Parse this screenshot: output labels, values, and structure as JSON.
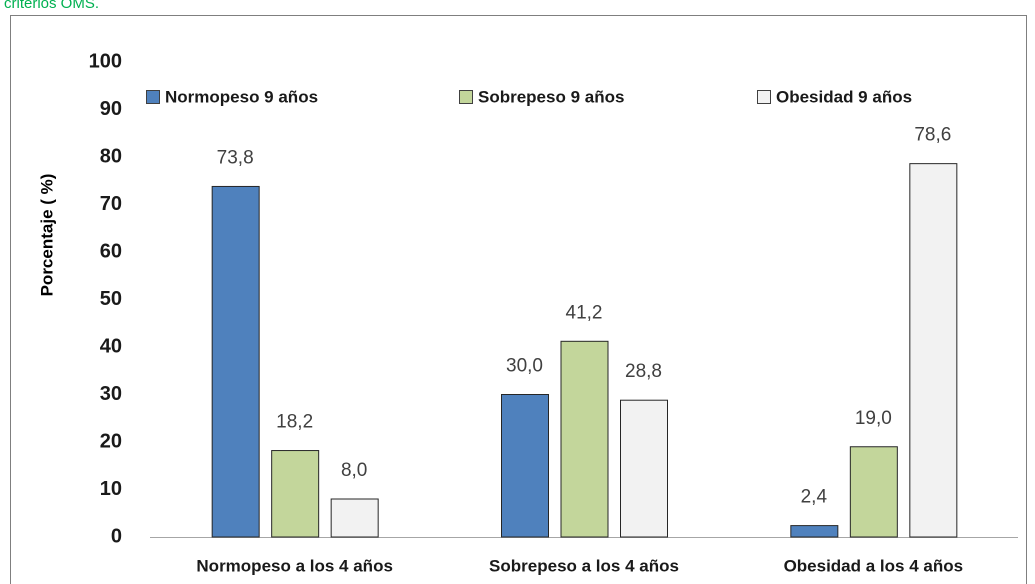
{
  "caption": "criterios OMS.",
  "chart_data": {
    "type": "bar",
    "y_label": "Porcentaje ( %)",
    "categories": [
      "Normopeso a los 4 años",
      "Sobrepeso a los 4 años",
      "Obesidad a los 4 años"
    ],
    "series": [
      {
        "name": "Normopeso 9 años",
        "color": "#4f81bd",
        "values": [
          73.8,
          30.0,
          2.4
        ],
        "value_labels": [
          "73,8",
          "30,0",
          "2,4"
        ]
      },
      {
        "name": "Sobrepeso 9 años",
        "color": "#c3d69b",
        "values": [
          18.2,
          41.2,
          19.0
        ],
        "value_labels": [
          "18,2",
          "41,2",
          "19,0"
        ]
      },
      {
        "name": "Obesidad 9 años",
        "color": "#f2f2f2",
        "values": [
          8.0,
          28.8,
          78.6
        ],
        "value_labels": [
          "8,0",
          "28,8",
          "78,6"
        ]
      }
    ],
    "ylim": [
      0,
      100
    ],
    "yticks": [
      0,
      10,
      20,
      30,
      40,
      50,
      60,
      70,
      80,
      90,
      100
    ],
    "grid": false,
    "legend": "top"
  }
}
